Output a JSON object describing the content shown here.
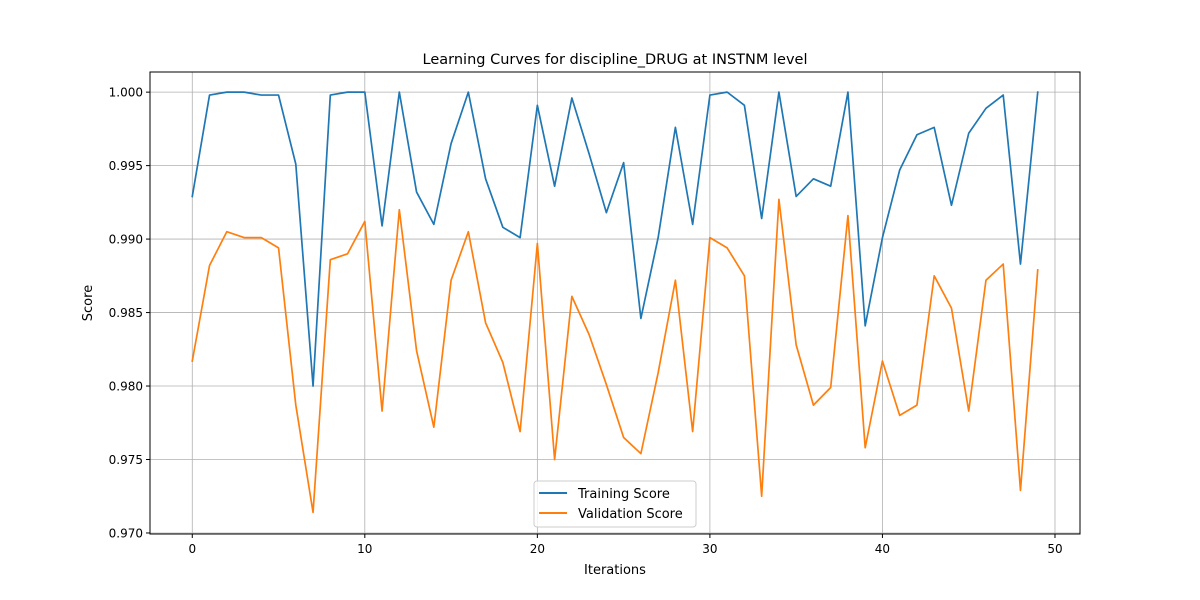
{
  "chart_data": {
    "type": "line",
    "title": "Learning Curves for discipline_DRUG at INSTNM level",
    "xlabel": "Iterations",
    "ylabel": "Score",
    "xlim": [
      -2.45,
      51.45
    ],
    "ylim": [
      0.96993,
      1.00137
    ],
    "xticks": [
      0,
      10,
      20,
      30,
      40,
      50
    ],
    "yticks": [
      0.97,
      0.975,
      0.98,
      0.985,
      0.99,
      0.995,
      1.0
    ],
    "ytick_labels": [
      "0.970",
      "0.975",
      "0.980",
      "0.985",
      "0.990",
      "0.995",
      "1.000"
    ],
    "grid": true,
    "legend": "lower center",
    "x": [
      0,
      1,
      2,
      3,
      4,
      5,
      6,
      7,
      8,
      9,
      10,
      11,
      12,
      13,
      14,
      15,
      16,
      17,
      18,
      19,
      20,
      21,
      22,
      23,
      24,
      25,
      26,
      27,
      28,
      29,
      30,
      31,
      32,
      33,
      34,
      35,
      36,
      37,
      38,
      39,
      40,
      41,
      42,
      43,
      44,
      45,
      46,
      47,
      48,
      49
    ],
    "series": [
      {
        "name": "Training Score",
        "color": "#1f77b4",
        "values": [
          0.9929,
          0.9998,
          1.0,
          1.0,
          0.9998,
          0.9998,
          0.9951,
          0.98,
          0.9998,
          1.0,
          1.0,
          0.9909,
          1.0,
          0.9932,
          0.991,
          0.9965,
          1.0,
          0.9941,
          0.9908,
          0.9901,
          0.9991,
          0.9936,
          0.9996,
          0.9958,
          0.9918,
          0.9952,
          0.9846,
          0.9901,
          0.9976,
          0.991,
          0.9998,
          1.0,
          0.9991,
          0.9914,
          1.0,
          0.9929,
          0.9941,
          0.9936,
          1.0,
          0.9841,
          0.9901,
          0.9947,
          0.9971,
          0.9976,
          0.9923,
          0.9972,
          0.9989,
          0.9998,
          0.9883,
          1.0
        ]
      },
      {
        "name": "Validation Score",
        "color": "#ff7f0e",
        "values": [
          0.9817,
          0.9882,
          0.9905,
          0.9901,
          0.9901,
          0.9894,
          0.9787,
          0.9714,
          0.9886,
          0.989,
          0.9912,
          0.9783,
          0.992,
          0.9824,
          0.9772,
          0.9872,
          0.9905,
          0.9843,
          0.9816,
          0.9769,
          0.9897,
          0.975,
          0.9861,
          0.9835,
          0.9801,
          0.9765,
          0.9754,
          0.9809,
          0.9872,
          0.9769,
          0.9901,
          0.9894,
          0.9875,
          0.9725,
          0.9927,
          0.9828,
          0.9787,
          0.9799,
          0.9916,
          0.9758,
          0.9817,
          0.978,
          0.9787,
          0.9875,
          0.9853,
          0.9783,
          0.9872,
          0.9883,
          0.9729,
          0.9879
        ]
      }
    ]
  }
}
